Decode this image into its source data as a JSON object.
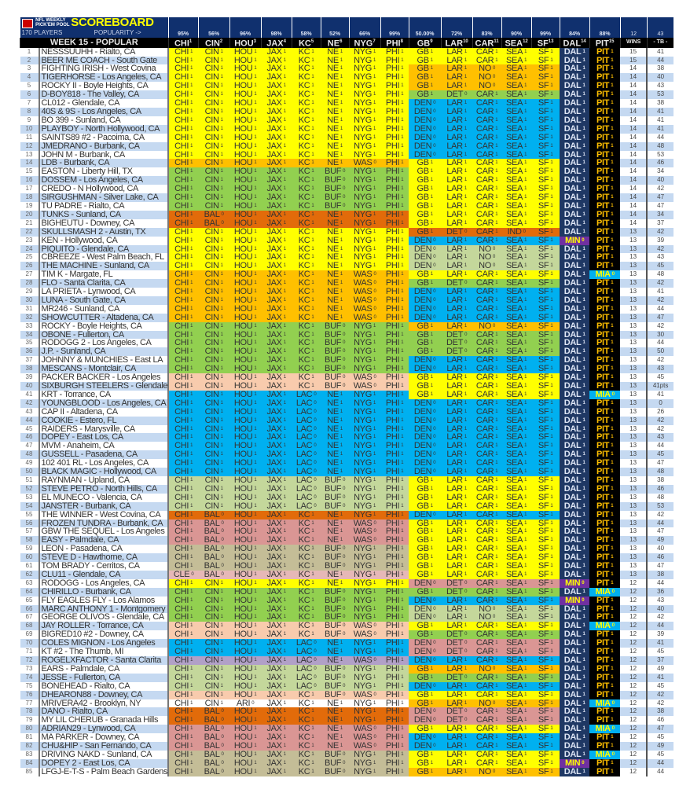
{
  "header": {
    "title_small_1": "NFL WEEKLY",
    "title_small_2": "PICK'EM POOL",
    "title": "SCOREBOARD",
    "players": "170 PLAYERS",
    "popularity": "POPULARITY ->",
    "week": "WEEK 15 - POPULAR",
    "wins_top": "12",
    "tb_top": "43",
    "wins_label": "WINS",
    "tb_label": "- TB -"
  },
  "columns": [
    {
      "team": "CHI",
      "n": "1",
      "pct": "95%"
    },
    {
      "team": "CIN",
      "n": "2",
      "pct": "56%"
    },
    {
      "team": "HOU",
      "n": "3",
      "pct": "96%"
    },
    {
      "team": "JAX",
      "n": "4",
      "pct": "98%"
    },
    {
      "team": "KC",
      "n": "5",
      "pct": "58%"
    },
    {
      "team": "NE",
      "n": "6",
      "pct": "52%"
    },
    {
      "team": "NYG",
      "n": "7",
      "pct": "66%"
    },
    {
      "team": "PHI",
      "n": "8",
      "pct": "99%"
    },
    {
      "team": "GB",
      "n": "9",
      "pct": "50.00%"
    },
    {
      "team": "LAR",
      "n": "10",
      "pct": "72%"
    },
    {
      "team": "CAR",
      "n": "11",
      "pct": "83%"
    },
    {
      "team": "SEA",
      "n": "12",
      "pct": "90%"
    },
    {
      "team": "SF",
      "n": "13",
      "pct": "99%"
    },
    {
      "team": "DAL",
      "n": "14",
      "pct": "84%"
    },
    {
      "team": "PIT",
      "n": "15",
      "pct": "88%"
    }
  ],
  "left_groups": {
    "A": {
      "color": "#ffff00",
      "picks": [
        [
          "CHI",
          1
        ],
        [
          "CIN",
          1
        ],
        [
          "HOU",
          1
        ],
        [
          "JAX",
          1
        ],
        [
          "KC",
          1
        ],
        [
          "NE",
          1
        ],
        [
          "NYG",
          1
        ],
        [
          "PHI",
          1
        ]
      ]
    },
    "B": {
      "color": "#ffc000",
      "picks": [
        [
          "CHI",
          1
        ],
        [
          "CIN",
          1
        ],
        [
          "HOU",
          1
        ],
        [
          "JAX",
          1
        ],
        [
          "KC",
          1
        ],
        [
          "NE",
          1
        ],
        [
          "WAS",
          0
        ],
        [
          "PHI",
          1
        ]
      ]
    },
    "C": {
      "color": "#92d050",
      "picks": [
        [
          "CHI",
          1
        ],
        [
          "CIN",
          1
        ],
        [
          "HOU",
          1
        ],
        [
          "JAX",
          1
        ],
        [
          "KC",
          1
        ],
        [
          "BUF",
          0
        ],
        [
          "NYG",
          1
        ],
        [
          "PHI",
          1
        ]
      ]
    },
    "D": {
      "color": "#e26b0a",
      "picks": [
        [
          "CHI",
          1
        ],
        [
          "BAL",
          0
        ],
        [
          "HOU",
          1
        ],
        [
          "JAX",
          1
        ],
        [
          "KC",
          1
        ],
        [
          "NE",
          1
        ],
        [
          "NYG",
          1
        ],
        [
          "PHI",
          1
        ]
      ]
    },
    "E": {
      "color": "#f8cbad",
      "picks": [
        [
          "CHI",
          1
        ],
        [
          "CIN",
          1
        ],
        [
          "HOU",
          1
        ],
        [
          "JAX",
          1
        ],
        [
          "KC",
          1
        ],
        [
          "BUF",
          0
        ],
        [
          "WAS",
          0
        ],
        [
          "PHI",
          1
        ]
      ]
    },
    "F": {
      "color": "#00b0f0",
      "picks": [
        [
          "CHI",
          1
        ],
        [
          "CIN",
          1
        ],
        [
          "HOU",
          1
        ],
        [
          "JAX",
          1
        ],
        [
          "LAC",
          0
        ],
        [
          "NE",
          1
        ],
        [
          "NYG",
          1
        ],
        [
          "PHI",
          1
        ]
      ]
    },
    "G": {
      "color": "#c4d79b",
      "picks": [
        [
          "CHI",
          1
        ],
        [
          "CIN",
          1
        ],
        [
          "HOU",
          1
        ],
        [
          "JAX",
          1
        ],
        [
          "LAC",
          0
        ],
        [
          "BUF",
          0
        ],
        [
          "NYG",
          1
        ],
        [
          "PHI",
          1
        ]
      ]
    },
    "H": {
      "color": "#da9694",
      "picks": [
        [
          "CHI",
          1
        ],
        [
          "BAL",
          0
        ],
        [
          "HOU",
          1
        ],
        [
          "JAX",
          1
        ],
        [
          "KC",
          1
        ],
        [
          "NE",
          1
        ],
        [
          "WAS",
          0
        ],
        [
          "PHI",
          1
        ]
      ]
    },
    "I": {
      "color": "#c4bd97",
      "picks": [
        [
          "CHI",
          1
        ],
        [
          "BAL",
          0
        ],
        [
          "HOU",
          1
        ],
        [
          "JAX",
          1
        ],
        [
          "KC",
          1
        ],
        [
          "BUF",
          0
        ],
        [
          "NYG",
          1
        ],
        [
          "PHI",
          1
        ]
      ]
    },
    "J": {
      "color": "#e6b8b7",
      "picks": [
        [
          "CLE",
          0
        ],
        [
          "BAL",
          0
        ],
        [
          "HOU",
          1
        ],
        [
          "JAX",
          1
        ],
        [
          "KC",
          1
        ],
        [
          "NE",
          1
        ],
        [
          "NYG",
          1
        ],
        [
          "PHI",
          1
        ]
      ]
    },
    "K": {
      "color": "#b1a0c7",
      "picks": [
        [
          "CHI",
          1
        ],
        [
          "CIN",
          1
        ],
        [
          "HOU",
          1
        ],
        [
          "JAX",
          1
        ],
        [
          "LAC",
          0
        ],
        [
          "NE",
          1
        ],
        [
          "WAS",
          0
        ],
        [
          "PHI",
          1
        ]
      ]
    },
    "L": {
      "color": "#ffffff",
      "picks": [
        [
          "CHI",
          1
        ],
        [
          "CIN",
          1
        ],
        [
          "ARI",
          0
        ],
        [
          "JAX",
          1
        ],
        [
          "KC",
          1
        ],
        [
          "NE",
          1
        ],
        [
          "NYG",
          1
        ],
        [
          "PHI",
          1
        ]
      ]
    }
  },
  "right_groups": {
    "a": {
      "color": "#ffff00",
      "picks": [
        [
          "GB",
          1
        ],
        [
          "LAR",
          1
        ],
        [
          "CAR",
          1
        ],
        [
          "SEA",
          1
        ],
        [
          "SF",
          1
        ]
      ]
    },
    "b": {
      "color": "#ffc000",
      "picks": [
        [
          "GB",
          1
        ],
        [
          "LAR",
          1
        ],
        [
          "NO",
          0
        ],
        [
          "SEA",
          1
        ],
        [
          "SF",
          1
        ]
      ]
    },
    "c": {
      "color": "#92d050",
      "picks": [
        [
          "GB",
          1
        ],
        [
          "DET",
          0
        ],
        [
          "CAR",
          1
        ],
        [
          "SEA",
          1
        ],
        [
          "SF",
          1
        ]
      ]
    },
    "d": {
      "color": "#00b0f0",
      "picks": [
        [
          "DEN",
          0
        ],
        [
          "LAR",
          1
        ],
        [
          "CAR",
          1
        ],
        [
          "SEA",
          1
        ],
        [
          "SF",
          1
        ]
      ]
    },
    "e": {
      "color": "#e26b0a",
      "picks": [
        [
          "GB",
          1
        ],
        [
          "DET",
          0
        ],
        [
          "CAR",
          1
        ],
        [
          "IND",
          0
        ],
        [
          "SF",
          1
        ]
      ]
    },
    "f": {
      "color": "#c4d79b",
      "picks": [
        [
          "DEN",
          0
        ],
        [
          "LAR",
          1
        ],
        [
          "NO",
          0
        ],
        [
          "SEA",
          1
        ],
        [
          "SF",
          1
        ]
      ]
    },
    "g": {
      "color": "#da9694",
      "picks": [
        [
          "DEN",
          0
        ],
        [
          "DET",
          0
        ],
        [
          "CAR",
          1
        ],
        [
          "SEA",
          1
        ],
        [
          "SF",
          1
        ]
      ]
    }
  },
  "rows": [
    [
      "NESSSUUHH - Rialto, CA",
      "A",
      "a",
      "DAL",
      "PIT",
      "15",
      "41"
    ],
    [
      "BEER ME COACH - South Gate",
      "A",
      "a",
      "DAL",
      "PIT",
      "15",
      "44"
    ],
    [
      "FIGHTING IRISH - West Covina",
      "A",
      "b",
      "DAL",
      "PIT",
      "14",
      "38"
    ],
    [
      "TIGERHORSE - Los Angeles, CA",
      "A",
      "b",
      "DAL",
      "PIT",
      "14",
      "40"
    ],
    [
      "ROCKY II - Boyle Heights, CA",
      "A",
      "b",
      "DAL",
      "PIT",
      "14",
      "43"
    ],
    [
      "D-BOY818 - The Valley, CA",
      "A",
      "c",
      "DAL",
      "PIT",
      "14",
      "53"
    ],
    [
      "CL012 - Glendale, CA",
      "A",
      "d",
      "DAL",
      "PIT",
      "14",
      "38"
    ],
    [
      "40S & 9S - Los Angeles, CA",
      "A",
      "d",
      "DAL",
      "PIT",
      "14",
      "41"
    ],
    [
      "BO 399 - Sunland, CA",
      "A",
      "d",
      "DAL",
      "PIT",
      "14",
      "41"
    ],
    [
      "PLAYBOY - North Hollywood, CA",
      "A",
      "d",
      "DAL",
      "PIT",
      "14",
      "41"
    ],
    [
      "SAINTS89 #2 - Pacoima, CA",
      "A",
      "d",
      "DAL",
      "PIT",
      "14",
      "44"
    ],
    [
      "JMEDRANO - Burbank, CA",
      "A",
      "d",
      "DAL",
      "PIT",
      "14",
      "48"
    ],
    [
      "JOHN M - Burbank, CA",
      "A",
      "d",
      "DAL",
      "PIT",
      "14",
      "53"
    ],
    [
      "LDB - Burbank, CA",
      "B",
      "a",
      "DAL",
      "PIT",
      "14",
      "46"
    ],
    [
      "EASTON - Liberty Hill, TX",
      "C",
      "a",
      "DAL",
      "PIT",
      "14",
      "34"
    ],
    [
      "DOSSEM - Los Angeles, CA",
      "C",
      "a",
      "DAL",
      "PIT",
      "14",
      "40"
    ],
    [
      "CREDO - N Hollywood, CA",
      "C",
      "a",
      "DAL",
      "PIT",
      "14",
      "42"
    ],
    [
      "SIRGUSHMAN - Silver Lake, CA",
      "C",
      "a",
      "DAL",
      "PIT",
      "14",
      "47"
    ],
    [
      "TU PADRE - Rialto, CA",
      "C",
      "a",
      "DAL",
      "PIT",
      "14",
      "47"
    ],
    [
      "TUNKS - Sunland, CA",
      "D",
      "a",
      "DAL",
      "PIT",
      "14",
      "34"
    ],
    [
      "BIGHEUTU - Downey, CA",
      "D",
      "a",
      "DAL",
      "PIT",
      "14",
      "37"
    ],
    [
      "SKULLSMASH 2 - Austin, TX",
      "A",
      "e",
      "DAL",
      "PIT",
      "13",
      "42"
    ],
    [
      "KEN - Hollywood, CA",
      "A",
      "d",
      "MIN",
      "PIT",
      "13",
      "39"
    ],
    [
      "PIQUITO - Glendale, CA",
      "A",
      "f",
      "DAL",
      "PIT",
      "13",
      "42"
    ],
    [
      "CBREEZE - West Palm Beach, FL",
      "A",
      "f",
      "DAL",
      "PIT",
      "13",
      "43"
    ],
    [
      "THE MACHINE - Sunland, CA",
      "A",
      "f",
      "DAL",
      "PIT",
      "13",
      "45"
    ],
    [
      "TIM K - Margate, FL",
      "B",
      "a",
      "DAL",
      "MIA",
      "13",
      "48"
    ],
    [
      "FLO - Santa Clarita, CA",
      "B",
      "c",
      "DAL",
      "PIT",
      "13",
      "42"
    ],
    [
      "LA PRIETA - Lynwood, CA",
      "B",
      "d",
      "DAL",
      "PIT",
      "13",
      "41"
    ],
    [
      "LUNA - South Gate, CA",
      "B",
      "d",
      "DAL",
      "PIT",
      "13",
      "42"
    ],
    [
      "MR246 - Sunland, CA",
      "B",
      "d",
      "DAL",
      "PIT",
      "13",
      "44"
    ],
    [
      "SHOWCUTTER - Altadena, CA",
      "B",
      "d",
      "DAL",
      "PIT",
      "13",
      "47"
    ],
    [
      "ROCKY - Boyle Heights, CA",
      "C",
      "b",
      "DAL",
      "PIT",
      "13",
      "42"
    ],
    [
      "OBONE - Fullerton, CA",
      "C",
      "c",
      "DAL",
      "PIT",
      "13",
      "30"
    ],
    [
      "RODOGG 2 - Los Angeles, CA",
      "C",
      "c",
      "DAL",
      "PIT",
      "13",
      "44"
    ],
    [
      "J.P. - Sunland, CA",
      "C",
      "c",
      "DAL",
      "PIT",
      "13",
      "50"
    ],
    [
      "JOHNNY & MUNCHIES - East LA",
      "C",
      "d",
      "DAL",
      "PIT",
      "13",
      "42"
    ],
    [
      "MESCANS - Montclair, CA",
      "C",
      "d",
      "DAL",
      "PIT",
      "13",
      "43"
    ],
    [
      "PACKER BACKER - Los Angeles",
      "E",
      "a",
      "DAL",
      "PIT",
      "13",
      "45"
    ],
    [
      "SIXBURGH STEELERS - Glendale",
      "E",
      "a",
      "DAL",
      "PIT",
      "13",
      "41pts"
    ],
    [
      "KRT - Torrance, CA",
      "F",
      "a",
      "DAL",
      "MIA",
      "13",
      "41"
    ],
    [
      "YOUNGBLOOD - Los Angeles, CA",
      "F",
      "d",
      "DAL",
      "PIT",
      "13",
      "0"
    ],
    [
      "CAP II - Altadena, CA",
      "F",
      "d",
      "DAL",
      "PIT",
      "13",
      "26"
    ],
    [
      "COOKIE - Estero, FL",
      "F",
      "d",
      "DAL",
      "PIT",
      "13",
      "42"
    ],
    [
      "RAIDERS - Marysville, CA",
      "F",
      "d",
      "DAL",
      "PIT",
      "13",
      "42"
    ],
    [
      "DOPEY - East Los, CA",
      "F",
      "d",
      "DAL",
      "PIT",
      "13",
      "43"
    ],
    [
      "MVM - Anaheim, CA",
      "F",
      "d",
      "DAL",
      "PIT",
      "13",
      "44"
    ],
    [
      "GUSSELL - Pasadena, CA",
      "F",
      "d",
      "DAL",
      "PIT",
      "13",
      "45"
    ],
    [
      "102 401 RL - Los Angeles, CA",
      "F",
      "d",
      "DAL",
      "PIT",
      "13",
      "47"
    ],
    [
      "BLACK MAGIC - Hollywood, CA",
      "F",
      "d",
      "DAL",
      "PIT",
      "13",
      "48"
    ],
    [
      "RAYNMAN - Upland, CA",
      "G",
      "a",
      "DAL",
      "PIT",
      "13",
      "38"
    ],
    [
      "STEVE PETRO - North Hills, CA",
      "G",
      "a",
      "DAL",
      "PIT",
      "13",
      "46"
    ],
    [
      "EL MUNECO - Valencia, CA",
      "G",
      "a",
      "DAL",
      "PIT",
      "13",
      "48"
    ],
    [
      "JANSTER - Burbank, CA",
      "G",
      "a",
      "DAL",
      "PIT",
      "13",
      "53"
    ],
    [
      "THE WINNER - West Covina, CA",
      "D",
      "d",
      "DAL",
      "PIT",
      "13",
      "42"
    ],
    [
      "FROZEN TUNDRA - Burbank, CA",
      "H",
      "a",
      "DAL",
      "PIT",
      "13",
      "44"
    ],
    [
      "GBW THE SEQUEL - Los Angeles",
      "H",
      "a",
      "DAL",
      "PIT",
      "13",
      "47"
    ],
    [
      "EASY - Palmdale, CA",
      "H",
      "a",
      "DAL",
      "PIT",
      "13",
      "49"
    ],
    [
      "LEON - Pasadena, CA",
      "I",
      "a",
      "DAL",
      "PIT",
      "13",
      "40"
    ],
    [
      "STEVE D - Hawthorne, CA",
      "I",
      "a",
      "DAL",
      "PIT",
      "13",
      "46"
    ],
    [
      "TOM BRADY - Cerritos, CA",
      "I",
      "a",
      "DAL",
      "PIT",
      "13",
      "47"
    ],
    [
      "CLU11 - Glendale, CA",
      "J",
      "a",
      "DAL",
      "PIT",
      "13",
      "38"
    ],
    [
      "RODOGG - Los Angeles, CA",
      "A",
      "g",
      "MIN",
      "PIT",
      "12",
      "44"
    ],
    [
      "CHIRILLO - Burbank, CA",
      "C",
      "c",
      "DAL",
      "MIA",
      "12",
      "36"
    ],
    [
      "FLY EAGLES FLY - Los Alamos",
      "C",
      "d",
      "MIN",
      "PIT",
      "12",
      "43"
    ],
    [
      "MARC ANTHONY 1 - Montgomery",
      "C",
      "f",
      "DAL",
      "PIT",
      "12",
      "40"
    ],
    [
      "GEORGE OLIVOS - Glendale, CA",
      "C",
      "f",
      "DAL",
      "PIT",
      "12",
      "42"
    ],
    [
      "JAY ROLLER - Torrance, CA",
      "E",
      "a",
      "DAL",
      "MIA",
      "12",
      "44"
    ],
    [
      "BIGRED10 #2 - Downey, CA",
      "E",
      "c",
      "DAL",
      "PIT",
      "12",
      "39"
    ],
    [
      "COLES MIGNON - Los Angeles",
      "F",
      "g",
      "DAL",
      "PIT",
      "12",
      "41"
    ],
    [
      "KT #2 - The Thumb, MI",
      "F",
      "g",
      "DAL",
      "PIT",
      "12",
      "45"
    ],
    [
      "ROGELXFACTOR - Santa Clarita",
      "K",
      "d",
      "DAL",
      "PIT",
      "12",
      "37"
    ],
    [
      "EARS - Palmdale, CA",
      "G",
      "b",
      "DAL",
      "PIT",
      "12",
      "49"
    ],
    [
      "JESSE - Fullerton, CA",
      "G",
      "c",
      "DAL",
      "PIT",
      "12",
      "41"
    ],
    [
      "BONEHEAD - Rialto, CA",
      "G",
      "d",
      "DAL",
      "PIT",
      "12",
      "45"
    ],
    [
      "DHEARON88 - Downey, CA",
      "E",
      "a",
      "DAL",
      "PIT",
      "12",
      "42"
    ],
    [
      "MRIVERA42 - Brooklyn, NY",
      "L",
      "b",
      "DAL",
      "MIA",
      "12",
      "42"
    ],
    [
      "DANO - Rialto, CA",
      "D",
      "g",
      "DAL",
      "PIT",
      "12",
      "38"
    ],
    [
      "MY LIL CHERUB - Granada Hills",
      "D",
      "g",
      "DAL",
      "PIT",
      "12",
      "46"
    ],
    [
      "ADRIAN29 - Lynwood, CA",
      "H",
      "a",
      "DAL",
      "MIA",
      "12",
      "47"
    ],
    [
      "MA PARKER - Downey, CA",
      "H",
      "d",
      "DAL",
      "PIT",
      "12",
      "45"
    ],
    [
      "CHU&HIP - San Fernando, CA",
      "H",
      "d",
      "DAL",
      "PIT",
      "12",
      "49"
    ],
    [
      "DRIVING NAKD - Sunland, CA",
      "I",
      "a",
      "DAL",
      "MIA",
      "12",
      "45"
    ],
    [
      "DOPEY 2 - East Los, CA",
      "I",
      "a",
      "MIN",
      "PIT",
      "12",
      "44"
    ],
    [
      "LFGJ-E-T-S - Palm Beach Gardens",
      "I",
      "b",
      "DAL",
      "PIT",
      "12",
      "44"
    ]
  ]
}
